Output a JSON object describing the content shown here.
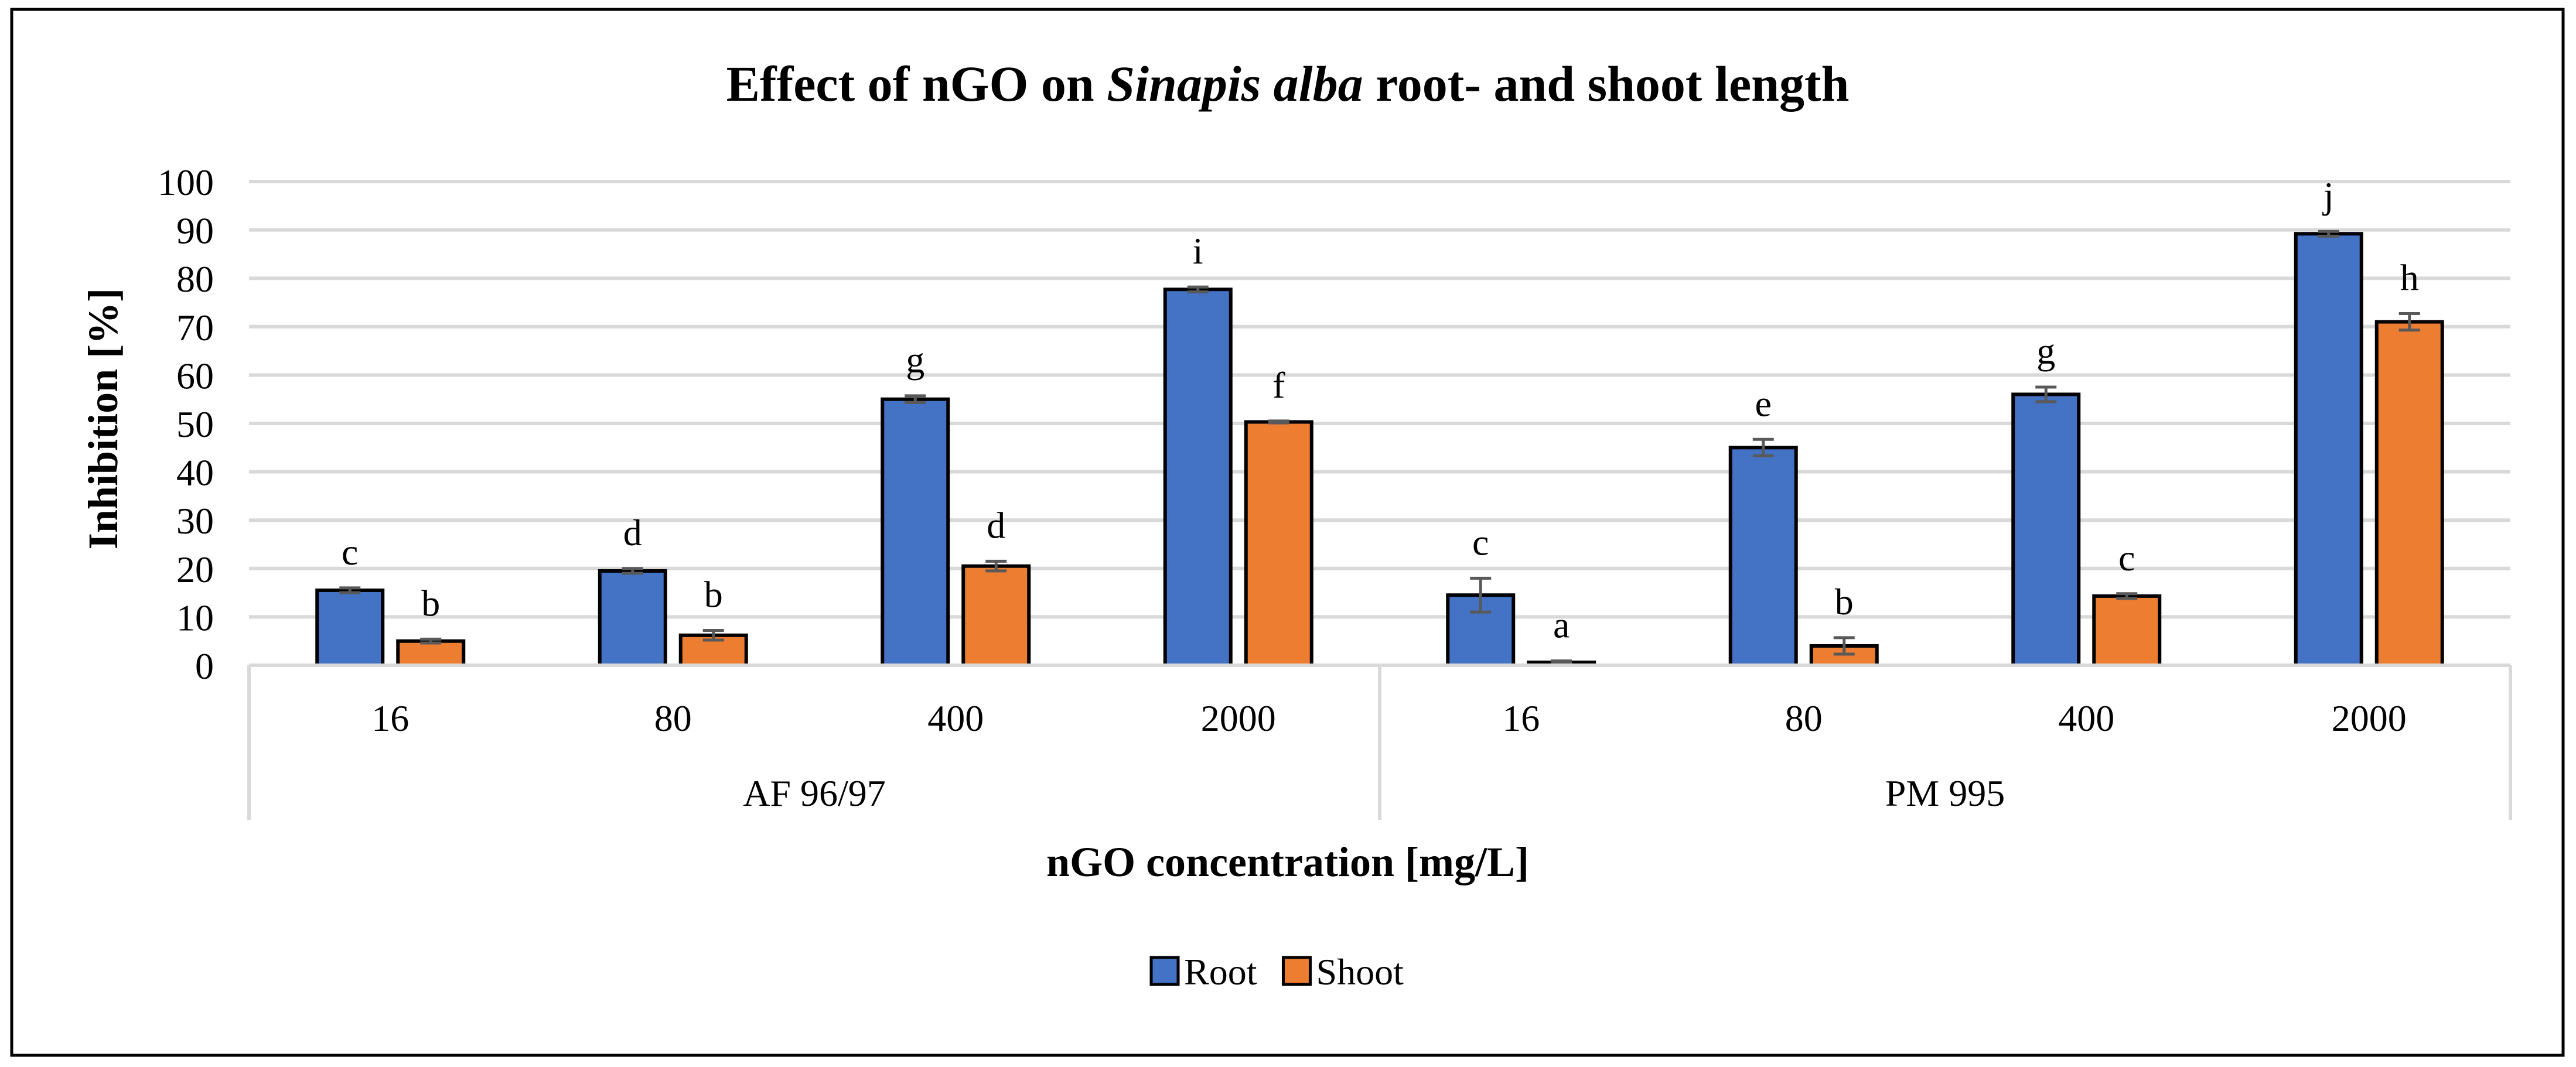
{
  "chart_data": {
    "type": "bar",
    "title_prefix": "Effect of nGO on ",
    "title_italic": "Sinapis alba",
    "title_suffix": " root- and shoot length",
    "ylabel": "Inhibition [%]",
    "xlabel": "nGO concentration [mg/L]",
    "ylim": [
      0,
      100
    ],
    "yticks": [
      "0",
      "10",
      "20",
      "30",
      "40",
      "50",
      "60",
      "70",
      "80",
      "90",
      "100"
    ],
    "grid": true,
    "legend_position": "bottom-center",
    "groups": [
      {
        "name": "AF 96/97",
        "categories": [
          "16",
          "80",
          "400",
          "2000"
        ]
      },
      {
        "name": "PM 995",
        "categories": [
          "16",
          "80",
          "400",
          "2000"
        ]
      }
    ],
    "series": [
      {
        "name": "Root",
        "color": "#4472c4",
        "values": [
          15.5,
          19.5,
          55,
          77.7,
          14.5,
          45,
          56,
          89.2
        ],
        "errors": [
          0.5,
          0.5,
          0.7,
          0.5,
          3.5,
          1.7,
          1.5,
          0.5
        ],
        "letters": [
          "c",
          "d",
          "g",
          "i",
          "c",
          "e",
          "g",
          "j"
        ]
      },
      {
        "name": "Shoot",
        "color": "#ed7d31",
        "values": [
          5,
          6.2,
          20.5,
          50.3,
          0.6,
          4,
          14.3,
          71
        ],
        "errors": [
          0.4,
          1.0,
          1.0,
          0.2,
          0.3,
          1.7,
          0.5,
          1.7
        ],
        "letters": [
          "b",
          "b",
          "d",
          "f",
          "a",
          "b",
          "c",
          "h"
        ]
      }
    ]
  }
}
